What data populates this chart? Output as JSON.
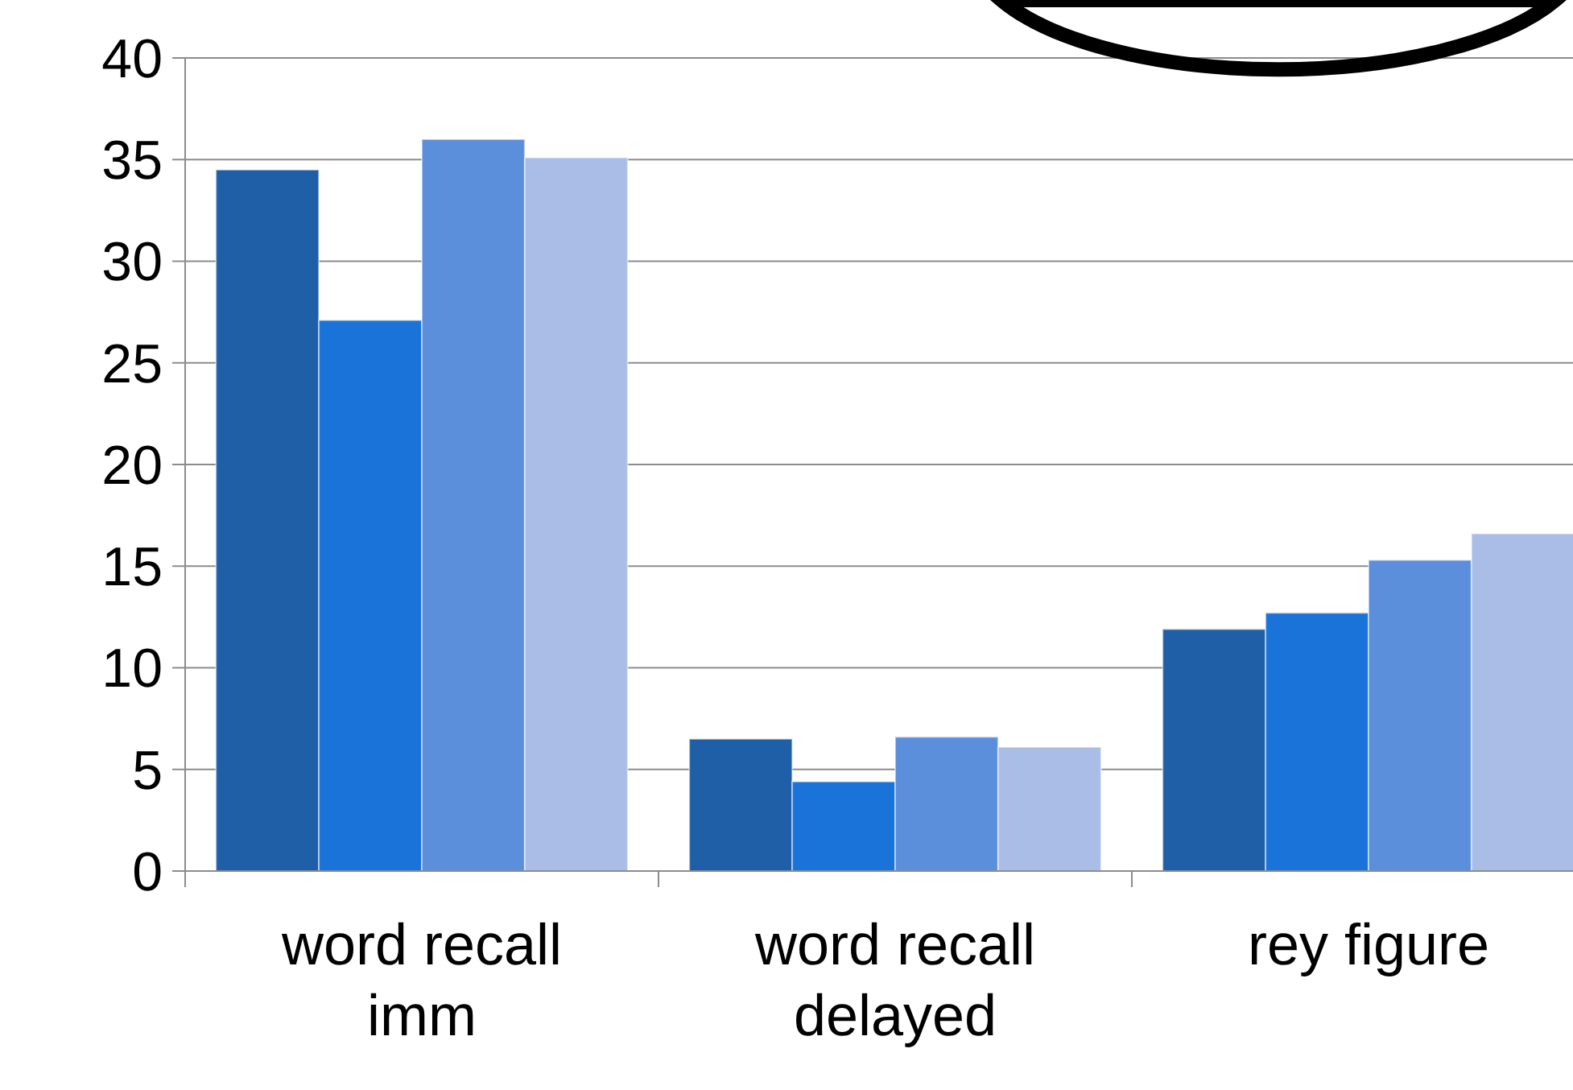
{
  "chart_data": {
    "type": "bar",
    "categories": [
      "word recall imm",
      "word recall delayed",
      "rey figure"
    ],
    "series": [
      {
        "color": "#1f5fa8",
        "values": [
          34.5,
          6.5,
          11.9
        ]
      },
      {
        "color": "#1a73d9",
        "values": [
          27.1,
          4.4,
          12.7
        ]
      },
      {
        "color": "#5b8fdc",
        "values": [
          36.0,
          6.6,
          15.3
        ]
      },
      {
        "color": "#a9bde6",
        "values": [
          35.1,
          6.1,
          16.6
        ]
      }
    ],
    "ylim": [
      0,
      40
    ],
    "yticks": [
      0,
      5,
      10,
      15,
      20,
      25,
      30,
      35,
      40
    ],
    "grid": "y"
  }
}
